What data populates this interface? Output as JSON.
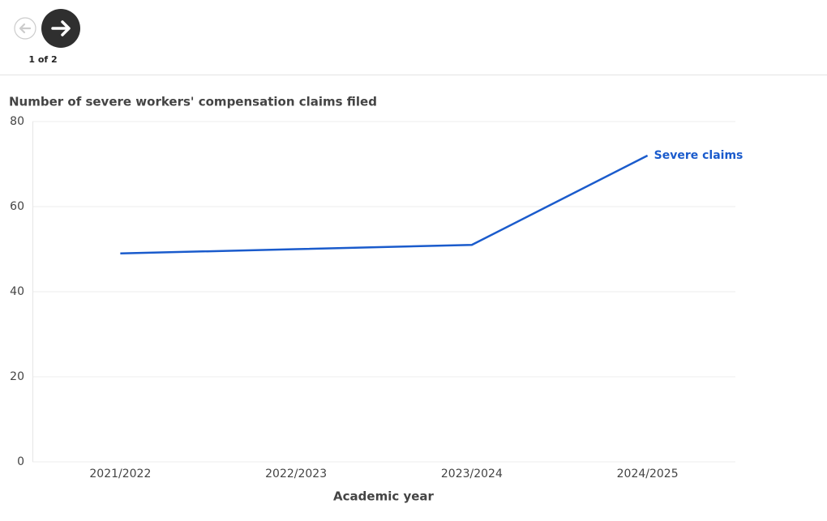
{
  "pager": {
    "label": "1 of 2"
  },
  "chart_data": {
    "type": "line",
    "title": "Number of severe workers' compensation claims filed",
    "x_label": "Academic year",
    "categories": [
      "2021/2022",
      "2022/2023",
      "2023/2024",
      "2024/2025"
    ],
    "series": [
      {
        "name": "Severe claims",
        "color": "#1a5bcc",
        "values": [
          49,
          50,
          51,
          72
        ]
      }
    ],
    "ylim": [
      0,
      80
    ],
    "yticks": [
      0,
      20,
      40,
      60,
      80
    ],
    "grid": true
  }
}
